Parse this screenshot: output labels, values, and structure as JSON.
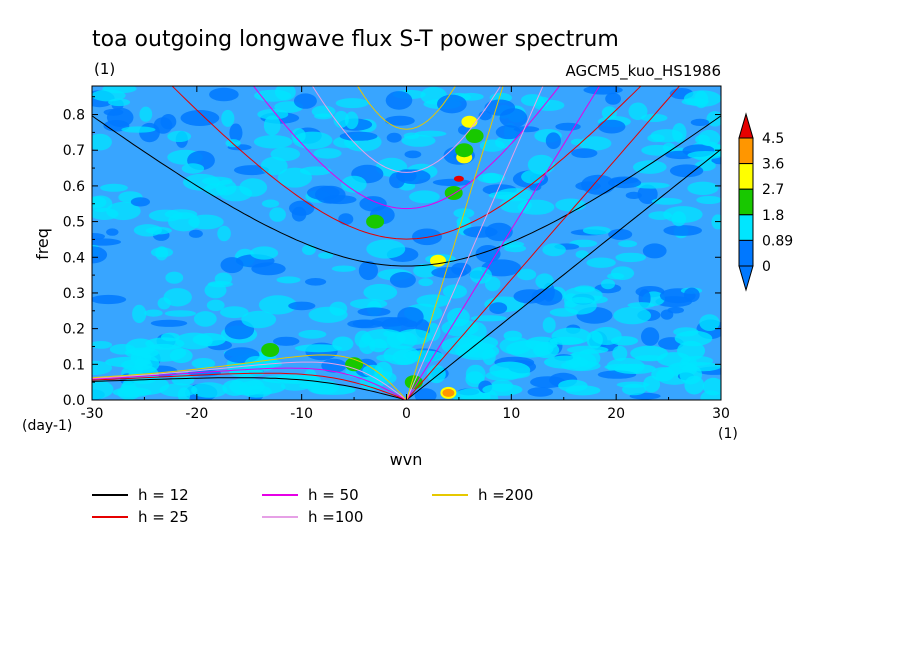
{
  "chart_data": {
    "type": "heatmap",
    "title": "toa outgoing longwave flux S-T power spectrum",
    "subtitle_left": "(1)",
    "subtitle_right": "AGCM5_kuo_HS1986",
    "xlabel": "wvn",
    "ylabel": "freq",
    "x_unit_label": "(1)",
    "y_unit_label": "(day-1)",
    "xlim": [
      -30,
      30
    ],
    "ylim": [
      0,
      0.88
    ],
    "x_ticks": [
      -30,
      -20,
      -10,
      0,
      10,
      20,
      30
    ],
    "x_tick_labels": [
      "-30",
      "-20",
      "-10",
      "0",
      "10",
      "20",
      "30"
    ],
    "y_ticks": [
      0,
      0.1,
      0.2,
      0.3,
      0.4,
      0.5,
      0.6,
      0.7,
      0.8
    ],
    "y_tick_labels": [
      "0.0",
      "0.1",
      "0.2",
      "0.3",
      "0.4",
      "0.5",
      "0.6",
      "0.7",
      "0.8"
    ],
    "colorbar": {
      "levels": [
        "4.5",
        "3.6",
        "2.7",
        "1.8",
        "0.89",
        "0"
      ],
      "colors": [
        "#0078ff",
        "#00e6ff",
        "#18c800",
        "#ffff00",
        "#ff9600",
        "#e60000"
      ]
    },
    "background_color": "#38a5ff",
    "hotspots": [
      {
        "x": 5,
        "y": 0.62,
        "level": 5
      },
      {
        "x": 5.5,
        "y": 0.68,
        "level": 3
      },
      {
        "x": 5.5,
        "y": 0.7,
        "level": 2
      },
      {
        "x": 6,
        "y": 0.78,
        "level": 3
      },
      {
        "x": 4.5,
        "y": 0.58,
        "level": 2
      },
      {
        "x": 3,
        "y": 0.39,
        "level": 4
      },
      {
        "x": 3,
        "y": 0.39,
        "level": 3
      },
      {
        "x": -3,
        "y": 0.5,
        "level": 2
      },
      {
        "x": 4,
        "y": 0.02,
        "level": 3
      },
      {
        "x": 4,
        "y": 0.02,
        "level": 4
      },
      {
        "x": 0.7,
        "y": 0.05,
        "level": 2
      },
      {
        "x": -5,
        "y": 0.1,
        "level": 2
      },
      {
        "x": -13,
        "y": 0.14,
        "level": 2
      },
      {
        "x": 6.5,
        "y": 0.74,
        "level": 2
      }
    ],
    "dispersion_curves": {
      "equivalent_depths_m": [
        12,
        25,
        50,
        100,
        200
      ],
      "colors": [
        "#000000",
        "#e60000",
        "#e600e6",
        "#e6a0e6",
        "#e6c800"
      ]
    },
    "legend": [
      {
        "label": "h = 12",
        "color": "#000000"
      },
      {
        "label": "h = 25",
        "color": "#e60000"
      },
      {
        "label": "h = 50",
        "color": "#e600e6"
      },
      {
        "label": "h =100",
        "color": "#e6a0e6"
      },
      {
        "label": "h =200",
        "color": "#e6c800"
      }
    ]
  }
}
